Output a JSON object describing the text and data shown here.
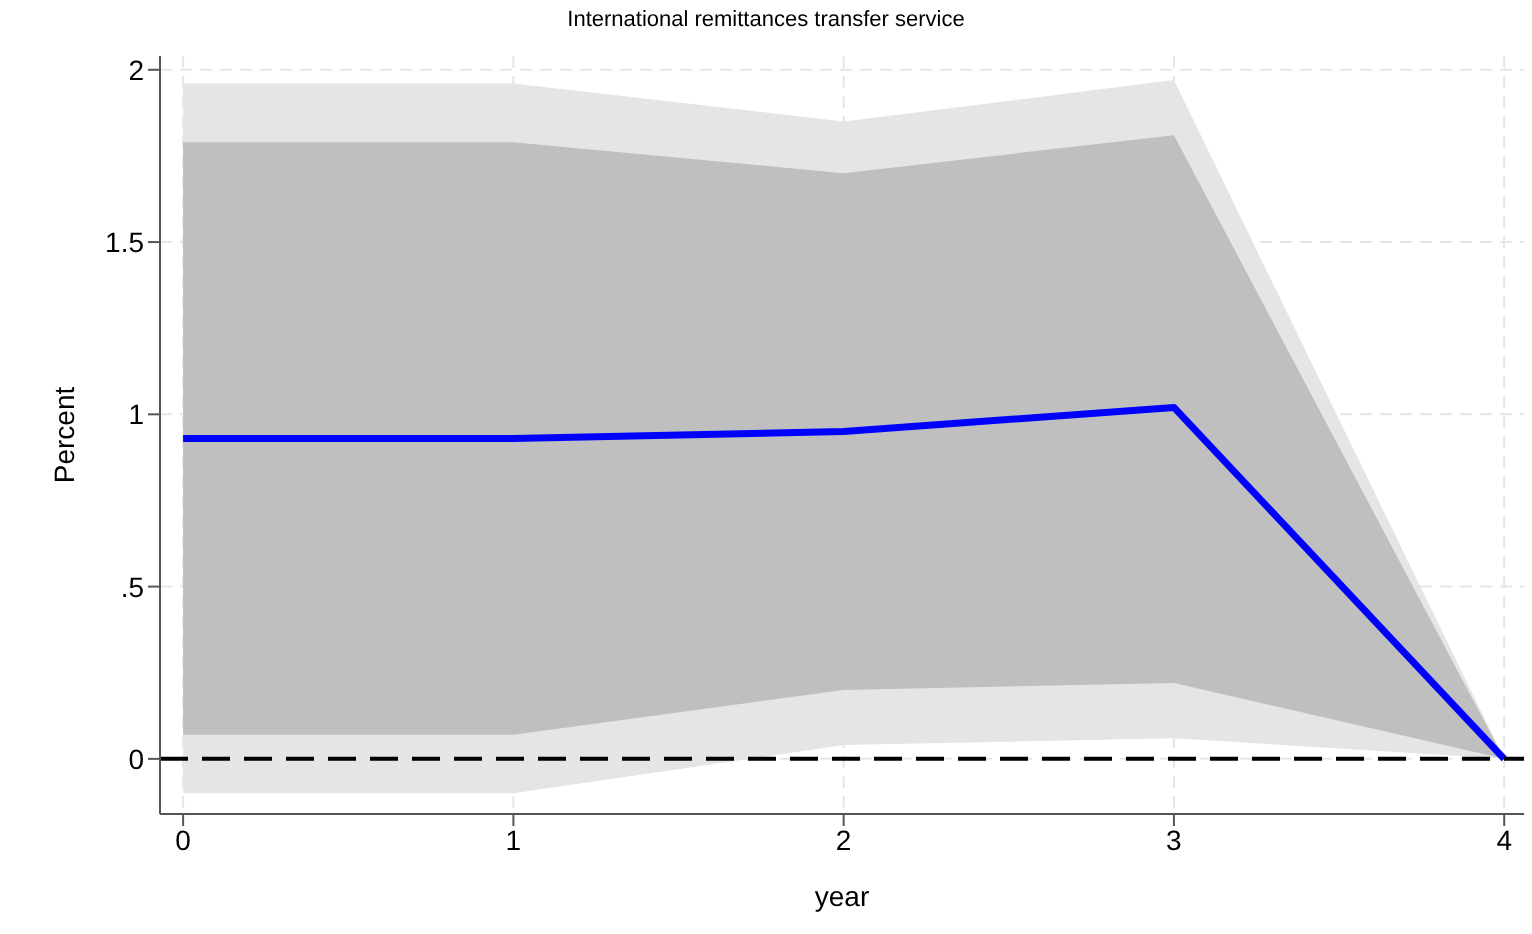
{
  "chart_data": {
    "type": "line",
    "title": "International remittances transfer service",
    "xlabel": "year",
    "ylabel": "Percent",
    "x": [
      0,
      1,
      2,
      3,
      4
    ],
    "series": [
      {
        "color": "#e5e5e5",
        "values": [
          null,
          null,
          null,
          null,
          null
        ],
        "lower": [
          -0.1,
          -0.1,
          0.04,
          0.06,
          0
        ],
        "upper": [
          1.96,
          1.96,
          1.85,
          1.97,
          0
        ]
      },
      {
        "color": "#bfbfbf",
        "values": [
          null,
          null,
          null,
          null,
          null
        ],
        "lower": [
          0.07,
          0.07,
          0.2,
          0.22,
          0
        ],
        "upper": [
          1.79,
          1.79,
          1.7,
          1.81,
          0
        ]
      },
      {
        "color": "#0000ff",
        "values": [
          0.93,
          0.93,
          0.95,
          1.02,
          0
        ]
      }
    ],
    "xlim": [
      -0.07,
      4.06
    ],
    "xticks": [
      0,
      1,
      2,
      3,
      4
    ],
    "ylim": [
      -0.16,
      2.04
    ],
    "yticks": [
      0,
      {
        "value": 0.5,
        "label": ".5"
      },
      1,
      1.5,
      2
    ],
    "ref_lines": [
      {
        "axis": "y",
        "value": 0,
        "color": "#000000",
        "line_style": "dashed"
      }
    ],
    "grid": true,
    "marker": "none",
    "line_style": "solid"
  }
}
